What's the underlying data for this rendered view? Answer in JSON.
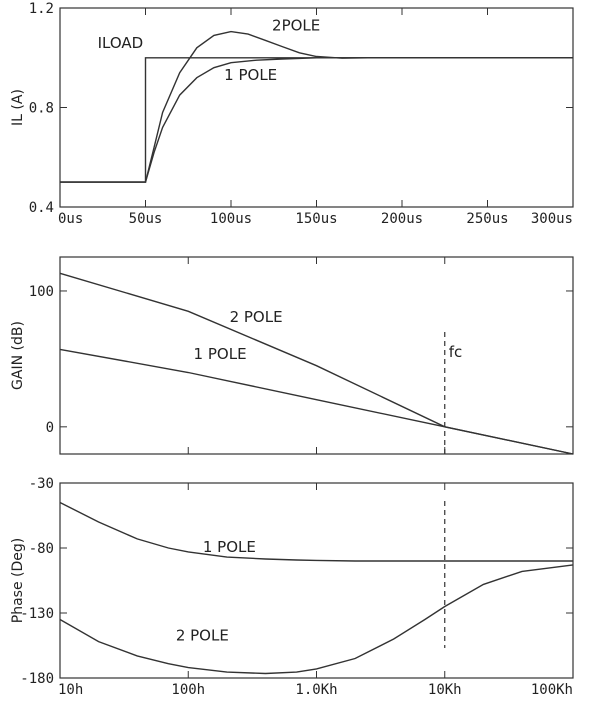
{
  "chart_data": [
    {
      "type": "line",
      "ylabel": "IL (A)",
      "xlim": [
        0,
        300
      ],
      "ylim": [
        0.4,
        1.2
      ],
      "x_ticks": [
        0,
        50,
        100,
        150,
        200,
        250,
        300
      ],
      "x_tick_labels": [
        "0us",
        "50us",
        "100us",
        "150us",
        "200us",
        "250us",
        "300us"
      ],
      "y_ticks": [
        0.4,
        0.8,
        1.2
      ],
      "y_tick_labels": [
        "0.4",
        "0.8",
        "1.2"
      ],
      "series": [
        {
          "name": "ILOAD",
          "x": [
            0,
            50,
            50,
            300
          ],
          "y": [
            0.5,
            0.5,
            1.0,
            1.0
          ]
        },
        {
          "name": "1 POLE",
          "x": [
            0,
            50,
            55,
            60,
            70,
            80,
            90,
            100,
            115,
            130,
            150,
            175,
            200,
            300
          ],
          "y": [
            0.5,
            0.5,
            0.62,
            0.72,
            0.85,
            0.92,
            0.96,
            0.98,
            0.99,
            0.995,
            1.0,
            1.0,
            1.0,
            1.0
          ]
        },
        {
          "name": "2POLE",
          "x": [
            0,
            50,
            55,
            60,
            70,
            80,
            90,
            100,
            110,
            120,
            130,
            140,
            150,
            165,
            180,
            200,
            300
          ],
          "y": [
            0.5,
            0.5,
            0.64,
            0.78,
            0.94,
            1.04,
            1.09,
            1.105,
            1.095,
            1.07,
            1.045,
            1.02,
            1.005,
            0.998,
            1.0,
            1.0,
            1.0
          ]
        }
      ],
      "annotations": [
        {
          "text": "ILOAD",
          "x": 22,
          "y": 1.04
        },
        {
          "text": "1 POLE",
          "x": 96,
          "y": 0.91
        },
        {
          "text": "2POLE",
          "x": 124,
          "y": 1.11
        }
      ]
    },
    {
      "type": "line",
      "ylabel": "GAIN (dB)",
      "x_scale": "log",
      "xlim": [
        10,
        100000
      ],
      "ylim": [
        -20,
        125
      ],
      "y_ticks": [
        0,
        100
      ],
      "y_tick_labels": [
        "0",
        "100"
      ],
      "series": [
        {
          "name": "2 POLE",
          "x": [
            10,
            100,
            1000,
            10000,
            100000
          ],
          "y": [
            113,
            85,
            45,
            0,
            -20
          ]
        },
        {
          "name": "1 POLE",
          "x": [
            10,
            100,
            1000,
            10000,
            100000
          ],
          "y": [
            57,
            40,
            20,
            0,
            -20
          ]
        }
      ],
      "markers": [
        {
          "text": "fc",
          "x": 10000
        }
      ],
      "annotations": [
        {
          "text": "2 POLE",
          "x": 210,
          "y": 77
        },
        {
          "text": "1 POLE",
          "x": 110,
          "y": 50
        }
      ]
    },
    {
      "type": "line",
      "ylabel": "Phase (Deg)",
      "x_scale": "log",
      "xlim": [
        10,
        100000
      ],
      "ylim": [
        -180,
        -30
      ],
      "x_ticks": [
        10,
        100,
        1000,
        10000,
        100000
      ],
      "x_tick_labels": [
        "10h",
        "100h",
        "1.0Kh",
        "10Kh",
        "100Kh"
      ],
      "y_ticks": [
        -30,
        -80,
        -130,
        -180
      ],
      "y_tick_labels": [
        "-30",
        "-80",
        "-130",
        "-180"
      ],
      "series": [
        {
          "name": "1 POLE",
          "x": [
            10,
            20,
            40,
            70,
            100,
            200,
            400,
            700,
            1000,
            2000,
            10000,
            100000
          ],
          "y": [
            -45,
            -60,
            -73,
            -80,
            -83,
            -87,
            -88.5,
            -89.2,
            -89.5,
            -90,
            -90,
            -90
          ]
        },
        {
          "name": "2 POLE",
          "x": [
            10,
            20,
            40,
            70,
            100,
            200,
            400,
            700,
            1000,
            2000,
            4000,
            7000,
            10000,
            20000,
            40000,
            100000
          ],
          "y": [
            -135,
            -152,
            -163,
            -169,
            -172,
            -175.5,
            -176.5,
            -175.5,
            -173,
            -165,
            -150,
            -135,
            -125,
            -108,
            -98,
            -93
          ]
        }
      ],
      "markers": [
        {
          "x": 10000
        }
      ],
      "annotations": [
        {
          "text": "1 POLE",
          "x": 130,
          "y": -83
        },
        {
          "text": "2 POLE",
          "x": 80,
          "y": -151
        }
      ]
    }
  ]
}
